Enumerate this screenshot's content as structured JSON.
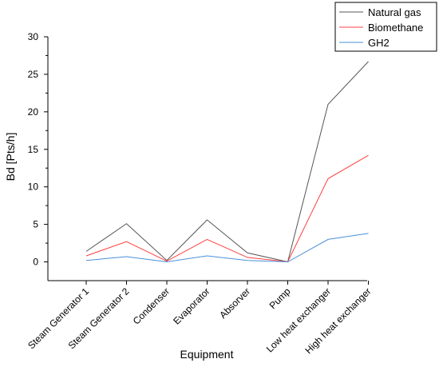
{
  "chart_data": {
    "type": "line",
    "title": "",
    "xlabel": "Equipment",
    "ylabel": "Bd [Pts/h]",
    "ylim": [
      -2.5,
      30
    ],
    "yticks": [
      0,
      5,
      10,
      15,
      20,
      25,
      30
    ],
    "categories": [
      "Steam Generator 1",
      "Steam Generator 2",
      "Condenser",
      "Evaporator",
      "Absorver",
      "Pump",
      "Low heat exchanger",
      "High heat exchanger"
    ],
    "series": [
      {
        "name": "Natural gas",
        "color": "#555555",
        "values": [
          1.4,
          5.1,
          0.2,
          5.6,
          1.2,
          0.0,
          21.0,
          26.7
        ]
      },
      {
        "name": "Biomethane",
        "color": "#ff4040",
        "values": [
          0.8,
          2.7,
          0.1,
          3.0,
          0.6,
          0.0,
          11.1,
          14.2
        ]
      },
      {
        "name": "GH2",
        "color": "#4a90d9",
        "values": [
          0.2,
          0.7,
          0.0,
          0.8,
          0.2,
          0.0,
          3.0,
          3.8
        ]
      }
    ],
    "grid": false,
    "legend": "top-right"
  }
}
